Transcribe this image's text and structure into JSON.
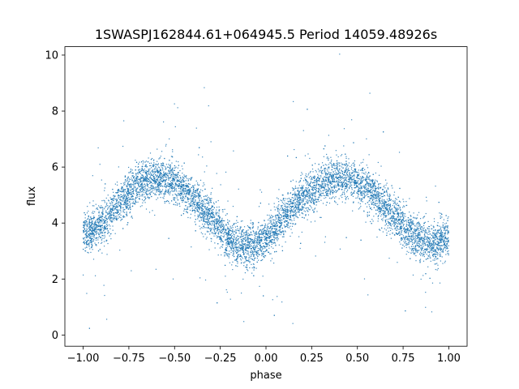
{
  "chart_data": {
    "type": "scatter",
    "title": "1SWASPJ162844.61+064945.5 Period 14059.48926s",
    "xlabel": "phase",
    "ylabel": "flux",
    "xlim": [
      -1.1,
      1.1
    ],
    "ylim": [
      -0.4,
      10.3
    ],
    "xticks": [
      -1.0,
      -0.75,
      -0.5,
      -0.25,
      0.0,
      0.25,
      0.5,
      0.75,
      1.0
    ],
    "xtick_labels": [
      "−1.00",
      "−0.75",
      "−0.50",
      "−0.25",
      "0.00",
      "0.25",
      "0.50",
      "0.75",
      "1.00"
    ],
    "yticks": [
      0,
      2,
      4,
      6,
      8,
      10
    ],
    "ytick_labels": [
      "0",
      "2",
      "4",
      "6",
      "8",
      "10"
    ],
    "grid": false,
    "point_color": "#1f77b4",
    "series": [
      {
        "x_range": [
          -1.0,
          1.0
        ],
        "trend": {
          "x": [
            -1.0,
            -0.9,
            -0.8,
            -0.7,
            -0.6,
            -0.5,
            -0.4,
            -0.3,
            -0.2,
            -0.1,
            0.0,
            0.1,
            0.2,
            0.3,
            0.4,
            0.5,
            0.6,
            0.7,
            0.8,
            0.9,
            1.0
          ],
          "y": [
            3.6,
            4.0,
            4.7,
            5.4,
            5.6,
            5.4,
            4.9,
            4.2,
            3.4,
            3.2,
            3.4,
            4.2,
            4.9,
            5.4,
            5.6,
            5.4,
            4.9,
            4.2,
            3.6,
            3.3,
            3.5
          ]
        },
        "band_halfwidth": 0.65
      }
    ]
  }
}
